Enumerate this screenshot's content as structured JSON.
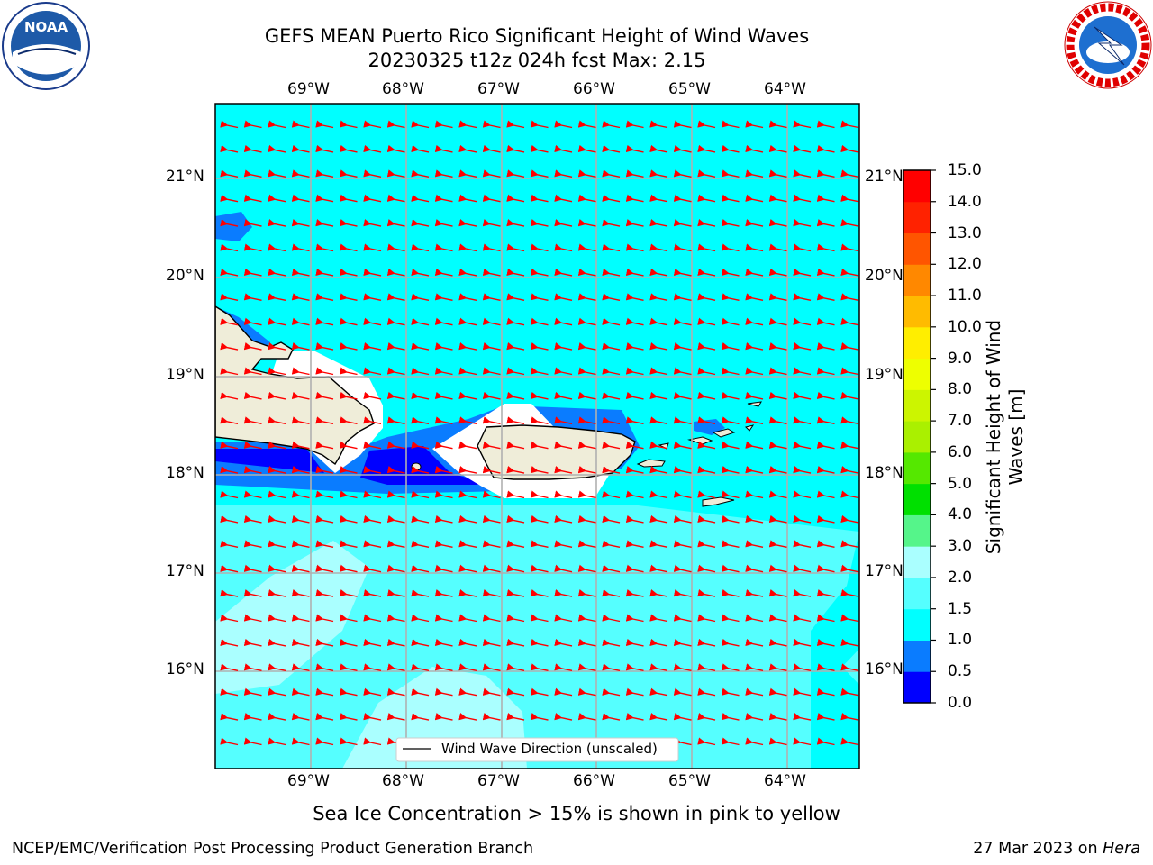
{
  "title_line1": "GEFS MEAN Puerto Rico Significant Height of Wind Waves",
  "title_line2": "20230325 t12z 024h fcst   Max: 2.15",
  "subtitle": "Sea Ice Concentration > 15% is shown in pink to yellow",
  "footer_left": "NCEP/EMC/Verification Post Processing Product Generation Branch",
  "footer_right_date": "27 Mar 2023 on ",
  "footer_right_host": "Hera",
  "logos": {
    "left": "noaa-logo",
    "right": "nws-logo"
  },
  "map": {
    "lon_ticks": [
      "69°W",
      "68°W",
      "67°W",
      "66°W",
      "65°W",
      "64°W"
    ],
    "lat_ticks": [
      "21°N",
      "20°N",
      "19°N",
      "18°N",
      "17°N",
      "16°N"
    ],
    "legend_label": "Wind Wave Direction (unscaled)",
    "ocean_color": "#00ffff",
    "land_color": "#efedd9",
    "arrow_color": "#ff0000",
    "wind_direction": "from east-northeast"
  },
  "colorbar": {
    "label": "Significant Height of Wind Waves [m]",
    "label_line1": "Significant Height of Wind",
    "label_line2": "Waves [m]",
    "ticks": [
      "0.0",
      "0.5",
      "1.0",
      "1.5",
      "2.0",
      "3.0",
      "4.0",
      "5.0",
      "6.0",
      "7.0",
      "8.0",
      "9.0",
      "10.0",
      "11.0",
      "12.0",
      "13.0",
      "14.0",
      "15.0"
    ],
    "colors": [
      "#0000ff",
      "#0a7cff",
      "#00ffff",
      "#55ffff",
      "#aaffff",
      "#55f58a",
      "#00e000",
      "#55e800",
      "#aaf000",
      "#ccf500",
      "#eeff00",
      "#ffee00",
      "#ffbb00",
      "#ff8800",
      "#ff5500",
      "#ff2200",
      "#ff0000"
    ]
  }
}
